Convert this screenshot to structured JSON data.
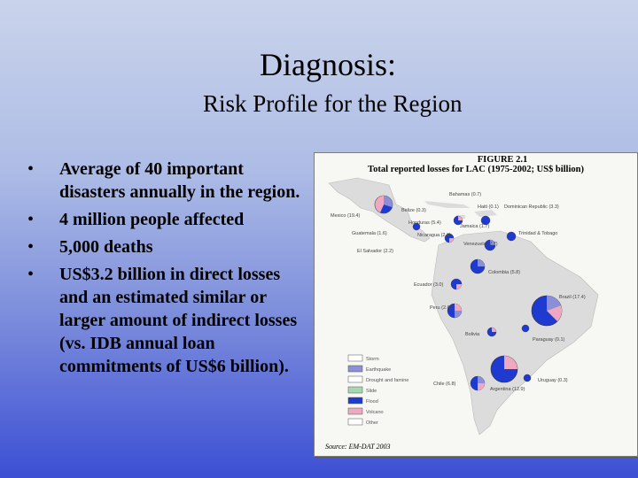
{
  "title": "Diagnosis:",
  "subtitle": "Risk Profile for the Region",
  "bullets": [
    "Average of 40 important disasters annually in the region.",
    "4 million people affected",
    "5,000 deaths",
    "US$3.2 billion in direct losses and an estimated similar or larger amount of indirect losses (vs. IDB annual loan commitments of US$6 billion)."
  ],
  "bullet_glyph": "•",
  "figure": {
    "label": "FIGURE 2.1",
    "caption": "Total reported losses for LAC (1975-2002; US$ billion)",
    "source_label": "Source:",
    "source_value": "EM-DAT 2003",
    "country_labels": [
      "Mexico (19.4)",
      "Bahamas (0.7)",
      "Belize (0.3)",
      "Haiti (0.1)",
      "Dominican Republic (3.3)",
      "Honduras (5.4)",
      "Jamaica (1.7)",
      "Guatemala (1.6)",
      "El Salvador (2.2)",
      "Trinidad & Tobago",
      "Nicaragua (2.9)",
      "Venezuela (2.7)",
      "Ecuador (3.0)",
      "Colombia (5.8)",
      "Peru (2.6)",
      "Brazil (17.4)",
      "Bolivia",
      "Chile (6.8)",
      "Paraguay (0.1)",
      "Argentina (12.9)",
      "Uruguay (0.3)"
    ],
    "legend": [
      "Storm",
      "Earthquake",
      "Drought and famine",
      "Slide",
      "Flood",
      "Volcano",
      "Other"
    ],
    "colors": {
      "land": "#dcdcdc",
      "pie_blue": "#1f3ad0",
      "pie_pink": "#f0a8c0",
      "pie_grid": "#8a8fd8"
    }
  }
}
